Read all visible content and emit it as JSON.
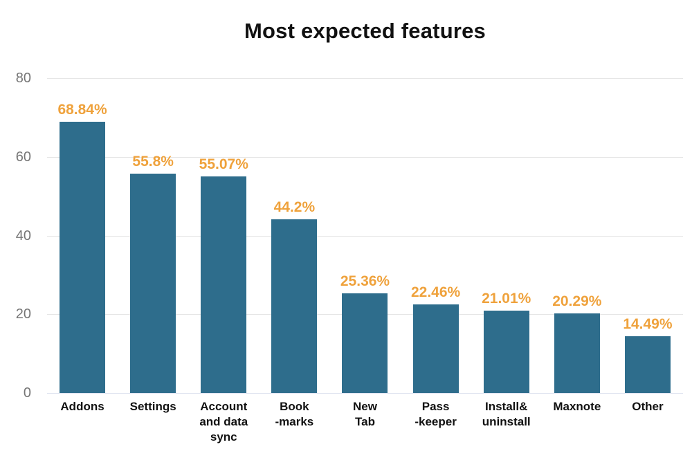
{
  "chart_data": {
    "type": "bar",
    "title": "Most expected features",
    "categories": [
      "Addons",
      "Settings",
      "Account\nand data\nsync",
      "Book\n-marks",
      "New\nTab",
      "Pass\n-keeper",
      "Install&\nuninstall",
      "Maxnote",
      "Other"
    ],
    "values": [
      68.84,
      55.8,
      55.07,
      44.2,
      25.36,
      22.46,
      21.01,
      20.29,
      14.49
    ],
    "value_labels": [
      "68.84%",
      "55.8%",
      "55.07%",
      "44.2%",
      "25.36%",
      "22.46%",
      "21.01%",
      "20.29%",
      "14.49%"
    ],
    "xlabel": "",
    "ylabel": "",
    "ylim": [
      0,
      80
    ],
    "y_ticks": [
      80,
      60,
      40,
      20,
      0
    ],
    "grid": true,
    "legend_position": "none",
    "colors": {
      "bar": "#2e6d8c",
      "value_label": "#efa23c",
      "axis_text": "#757575",
      "category_text": "#111111",
      "gridline": "#e6e6e6",
      "baseline": "#dde1ef",
      "title": "#111111",
      "background": "#ffffff"
    }
  }
}
